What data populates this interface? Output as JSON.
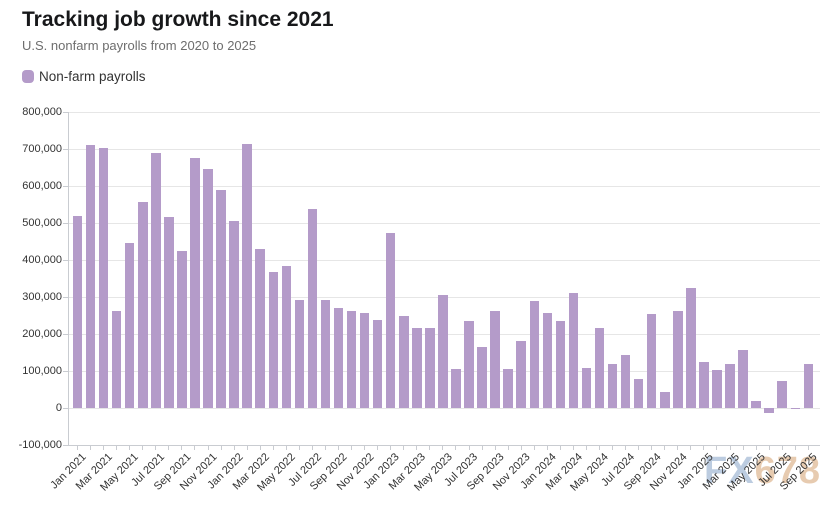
{
  "header": {
    "title": "Tracking job growth since 2021",
    "subtitle": "U.S. nonfarm payrolls from 2020 to 2025"
  },
  "watermark": {
    "part1": "FX",
    "part2": "678"
  },
  "chart_data": {
    "type": "bar",
    "title": "Tracking job growth since 2021",
    "subtitle": "U.S. nonfarm payrolls from 2020 to 2025",
    "legend_position": "top-left",
    "grid": true,
    "bar_color": "#b49bc9",
    "ylim": [
      -100000,
      800000
    ],
    "y_ticks": [
      800000,
      700000,
      600000,
      500000,
      400000,
      300000,
      200000,
      100000,
      0,
      -100000
    ],
    "y_tick_labels": [
      "800,000",
      "700,000",
      "600,000",
      "500,000",
      "400,000",
      "300,000",
      "200,000",
      "100,000",
      "0",
      "-100,000"
    ],
    "categories": [
      "Jan 2021",
      "Feb 2021",
      "Mar 2021",
      "Apr 2021",
      "May 2021",
      "Jun 2021",
      "Jul 2021",
      "Aug 2021",
      "Sep 2021",
      "Oct 2021",
      "Nov 2021",
      "Dec 2021",
      "Jan 2022",
      "Feb 2022",
      "Mar 2022",
      "Apr 2022",
      "May 2022",
      "Jun 2022",
      "Jul 2022",
      "Aug 2022",
      "Sep 2022",
      "Oct 2022",
      "Nov 2022",
      "Dec 2022",
      "Jan 2023",
      "Feb 2023",
      "Mar 2023",
      "Apr 2023",
      "May 2023",
      "Jun 2023",
      "Jul 2023",
      "Aug 2023",
      "Sep 2023",
      "Oct 2023",
      "Nov 2023",
      "Dec 2023",
      "Jan 2024",
      "Feb 2024",
      "Mar 2024",
      "Apr 2024",
      "May 2024",
      "Jun 2024",
      "Jul 2024",
      "Aug 2024",
      "Sep 2024",
      "Oct 2024",
      "Nov 2024",
      "Dec 2024",
      "Jan 2025",
      "Feb 2025",
      "Mar 2025",
      "Apr 2025",
      "May 2025",
      "Jun 2025",
      "Jul 2025",
      "Aug 2025",
      "Sep 2025"
    ],
    "x_tick_labels_shown": [
      "Jan 2021",
      "Mar 2021",
      "May 2021",
      "Jul 2021",
      "Sep 2021",
      "Nov 2021",
      "Jan 2022",
      "Mar 2022",
      "May 2022",
      "Jul 2022",
      "Sep 2022",
      "Nov 2022",
      "Jan 2023",
      "Mar 2023",
      "May 2023",
      "Jul 2023",
      "Sep 2023",
      "Nov 2023",
      "Jan 2024",
      "Mar 2024",
      "May 2024",
      "Jul 2024",
      "Sep 2024",
      "Nov 2024",
      "Jan 2025",
      "Mar 2025",
      "May 2025",
      "Jul 2025",
      "Sep 2025"
    ],
    "series": [
      {
        "name": "Non-farm payrolls",
        "color": "#b49bc9",
        "values": [
          520000,
          710000,
          704000,
          263000,
          447000,
          557000,
          689000,
          517000,
          424000,
          677000,
          647000,
          588000,
          505000,
          714000,
          430000,
          368000,
          385000,
          293000,
          537000,
          292000,
          269000,
          263000,
          256000,
          239000,
          472000,
          248000,
          217000,
          217000,
          306000,
          105000,
          236000,
          165000,
          262000,
          105000,
          182000,
          290000,
          256000,
          236000,
          310000,
          108000,
          216000,
          118000,
          144000,
          78000,
          255000,
          44000,
          261000,
          323000,
          125000,
          102000,
          120000,
          158000,
          19000,
          -13000,
          72000,
          -4000,
          119000
        ]
      }
    ]
  }
}
